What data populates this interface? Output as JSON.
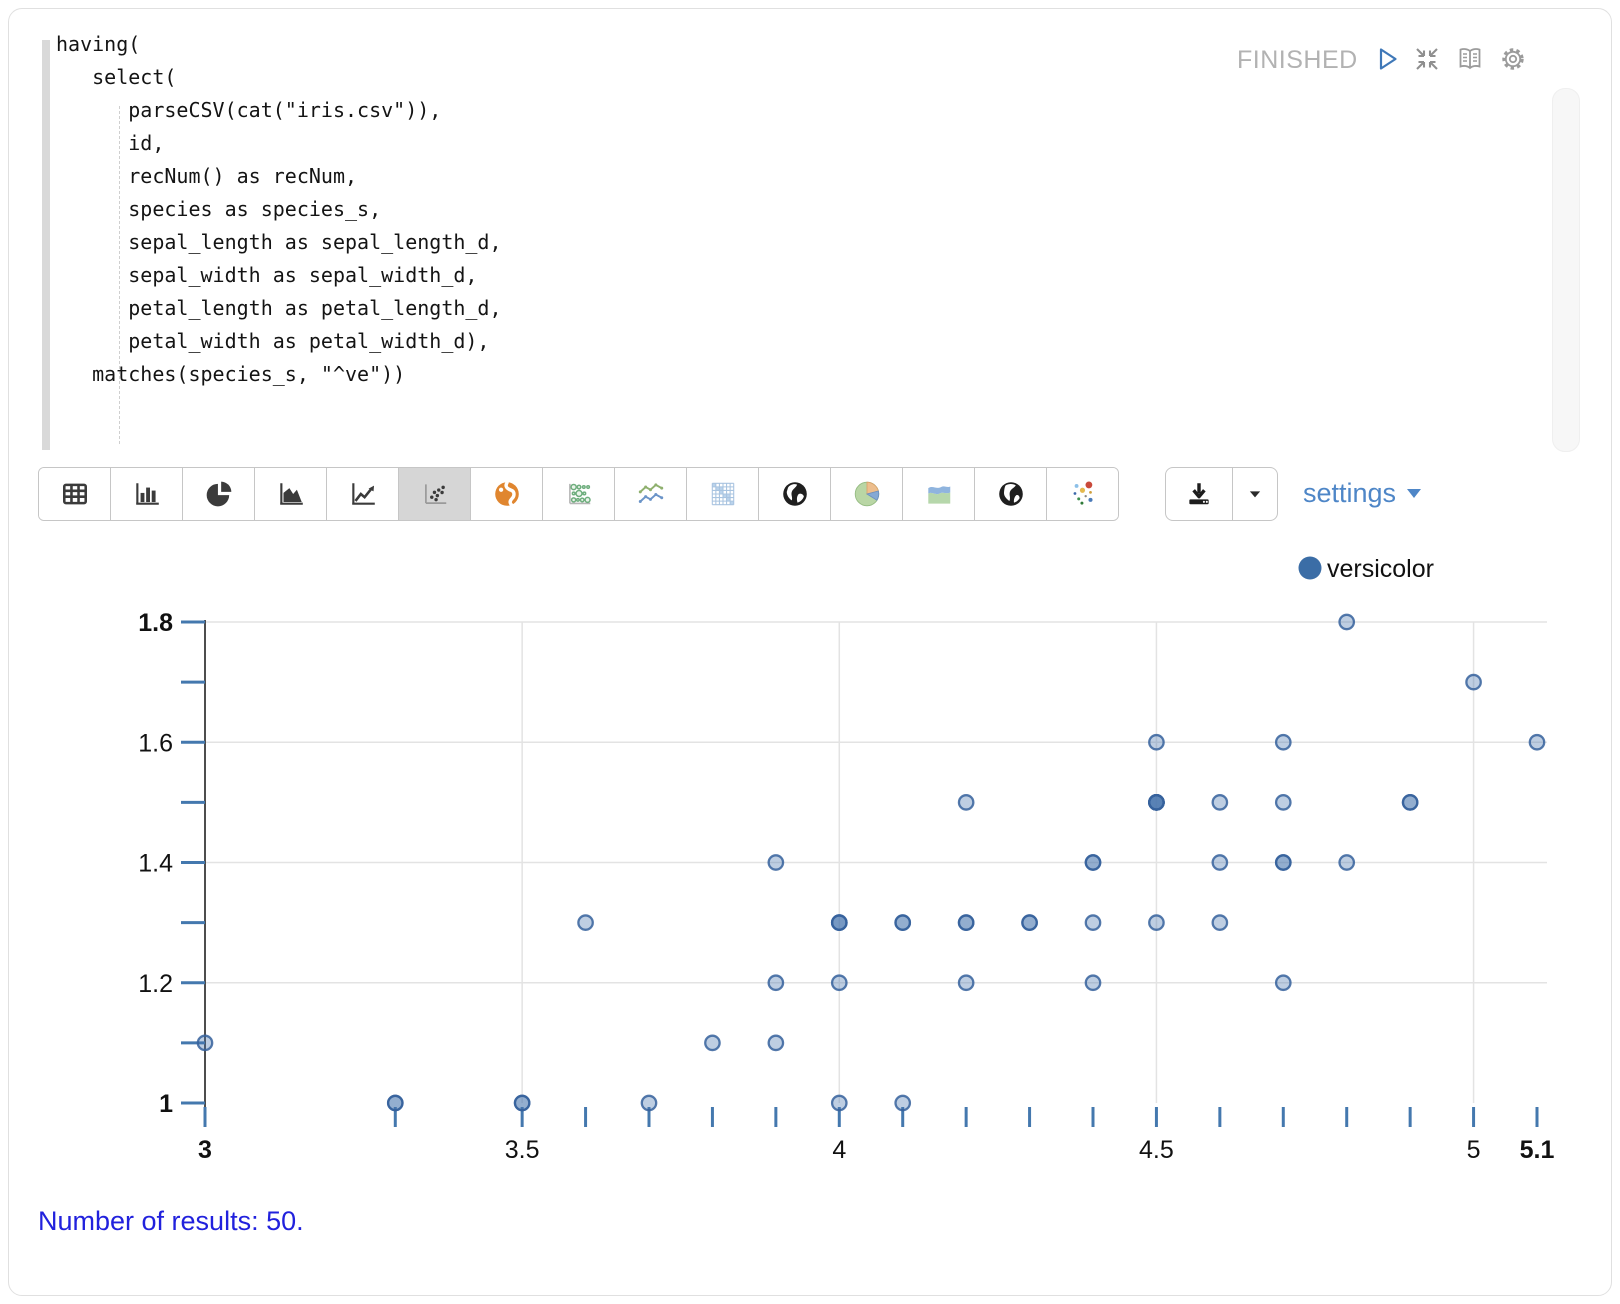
{
  "editor": {
    "status": "FINISHED",
    "code_lines": [
      "having(",
      "   select(",
      "      parseCSV(cat(\"iris.csv\")),",
      "      id,",
      "      recNum() as recNum,",
      "      species as species_s,",
      "      sepal_length as sepal_length_d,",
      "      sepal_width as sepal_width_d,",
      "      petal_length as petal_length_d,",
      "      petal_width as petal_width_d),",
      "   matches(species_s, \"^ve\"))"
    ],
    "action_icons": [
      "run-icon",
      "collapse-icon",
      "docs-book-icon",
      "gear-icon"
    ]
  },
  "toolbar": {
    "buttons": [
      {
        "name": "table",
        "selected": false
      },
      {
        "name": "bar-chart",
        "selected": false
      },
      {
        "name": "pie-chart",
        "selected": false
      },
      {
        "name": "area-chart",
        "selected": false
      },
      {
        "name": "line-chart",
        "selected": false
      },
      {
        "name": "scatter-plot",
        "selected": true
      },
      {
        "name": "world-map-orange",
        "selected": false
      },
      {
        "name": "bubble-matrix",
        "selected": false
      },
      {
        "name": "multi-line-chart",
        "selected": false
      },
      {
        "name": "adjacency-matrix",
        "selected": false
      },
      {
        "name": "globe-dark",
        "selected": false
      },
      {
        "name": "pie-chart-color",
        "selected": false
      },
      {
        "name": "stacked-area-chart",
        "selected": false
      },
      {
        "name": "globe-dark-2",
        "selected": false
      },
      {
        "name": "bubble-chart-color",
        "selected": false
      }
    ],
    "download_icon": "download-icon",
    "download_caret_icon": "caret-down-icon",
    "settings_label": "settings"
  },
  "chart_data": {
    "type": "scatter",
    "title": "",
    "xlabel": "",
    "ylabel": "",
    "xlim": [
      3,
      5.1
    ],
    "ylim": [
      1,
      1.8
    ],
    "xticks_labeled": [
      3,
      3.5,
      4,
      4.5,
      5,
      5.1
    ],
    "yticks_labeled": [
      1,
      1.2,
      1.4,
      1.6,
      1.8
    ],
    "x_gridlines": [
      3.5,
      4,
      4.5,
      5
    ],
    "y_gridlines": [
      1.2,
      1.4,
      1.6,
      1.8
    ],
    "x_rug": [
      3.0,
      3.3,
      3.5,
      3.6,
      3.7,
      3.8,
      3.9,
      4.0,
      4.1,
      4.2,
      4.3,
      4.4,
      4.5,
      4.6,
      4.7,
      4.8,
      4.9,
      5.0,
      5.1
    ],
    "y_rug": [
      1.0,
      1.1,
      1.2,
      1.3,
      1.4,
      1.5,
      1.6,
      1.7,
      1.8
    ],
    "legend": {
      "label": "versicolor",
      "position": "top-right"
    },
    "colors": {
      "point_fill": "rgba(70,114,172,0.35)",
      "point_stroke": "rgba(54,98,156,0.85)",
      "legend_dot": "#3b6da6",
      "tick": "#4478ae",
      "gridline": "#e3e3e3",
      "axis": "#4d4d4d"
    },
    "series": [
      {
        "name": "versicolor",
        "color": "#3b6da6",
        "points": [
          [
            4.7,
            1.4
          ],
          [
            4.5,
            1.5
          ],
          [
            4.9,
            1.5
          ],
          [
            4.0,
            1.3
          ],
          [
            4.6,
            1.5
          ],
          [
            4.5,
            1.3
          ],
          [
            4.7,
            1.6
          ],
          [
            3.3,
            1.0
          ],
          [
            4.6,
            1.3
          ],
          [
            3.9,
            1.4
          ],
          [
            3.5,
            1.0
          ],
          [
            4.2,
            1.5
          ],
          [
            4.0,
            1.0
          ],
          [
            4.7,
            1.4
          ],
          [
            3.6,
            1.3
          ],
          [
            4.4,
            1.4
          ],
          [
            4.5,
            1.5
          ],
          [
            4.1,
            1.0
          ],
          [
            4.5,
            1.5
          ],
          [
            3.9,
            1.1
          ],
          [
            4.8,
            1.8
          ],
          [
            4.0,
            1.3
          ],
          [
            4.9,
            1.5
          ],
          [
            4.7,
            1.2
          ],
          [
            4.3,
            1.3
          ],
          [
            4.4,
            1.4
          ],
          [
            4.8,
            1.4
          ],
          [
            5.0,
            1.7
          ],
          [
            4.5,
            1.5
          ],
          [
            3.5,
            1.0
          ],
          [
            3.8,
            1.1
          ],
          [
            3.7,
            1.0
          ],
          [
            3.9,
            1.2
          ],
          [
            5.1,
            1.6
          ],
          [
            4.5,
            1.6
          ],
          [
            4.5,
            1.5
          ],
          [
            4.7,
            1.5
          ],
          [
            4.4,
            1.3
          ],
          [
            4.1,
            1.3
          ],
          [
            4.0,
            1.3
          ],
          [
            4.4,
            1.2
          ],
          [
            4.6,
            1.4
          ],
          [
            4.0,
            1.2
          ],
          [
            3.3,
            1.0
          ],
          [
            4.2,
            1.3
          ],
          [
            4.2,
            1.2
          ],
          [
            4.2,
            1.3
          ],
          [
            4.3,
            1.3
          ],
          [
            3.0,
            1.1
          ],
          [
            4.1,
            1.3
          ]
        ]
      }
    ]
  },
  "footer": {
    "results_text": "Number of results: 50."
  }
}
